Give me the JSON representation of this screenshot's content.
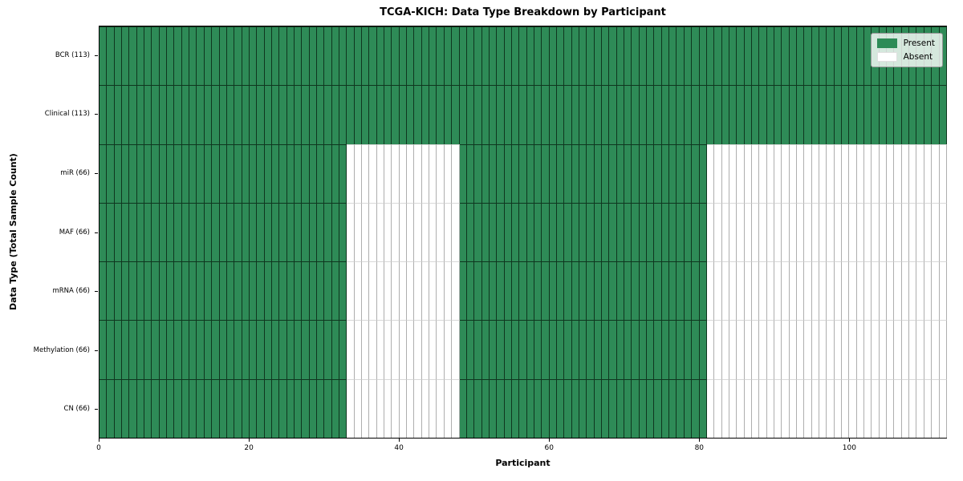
{
  "chart_data": {
    "type": "heatmap",
    "title": "TCGA-KICH: Data Type Breakdown by Participant",
    "xlabel": "Participant",
    "ylabel": "Data Type (Total Sample Count)",
    "x_ticks": [
      0,
      20,
      40,
      60,
      80,
      100
    ],
    "x_range": [
      0,
      113
    ],
    "n_participants": 113,
    "grid": false,
    "legend_position": "upper right",
    "colors": {
      "present": "#2e8b57",
      "absent": "#ffffff",
      "present_edge": "rgba(5,25,12,0.75)",
      "absent_edge": "#aeaeae"
    },
    "legend": [
      {
        "label": "Present",
        "key": "present"
      },
      {
        "label": "Absent",
        "key": "absent"
      }
    ],
    "rows": [
      {
        "label": "BCR (113)",
        "total_samples": 113,
        "present_ranges": [
          [
            0,
            113
          ]
        ]
      },
      {
        "label": "Clinical (113)",
        "total_samples": 113,
        "present_ranges": [
          [
            0,
            113
          ]
        ]
      },
      {
        "label": "miR (66)",
        "total_samples": 66,
        "present_ranges": [
          [
            0,
            33
          ],
          [
            48,
            81
          ]
        ]
      },
      {
        "label": "MAF (66)",
        "total_samples": 66,
        "present_ranges": [
          [
            0,
            33
          ],
          [
            48,
            81
          ]
        ]
      },
      {
        "label": "mRNA (66)",
        "total_samples": 66,
        "present_ranges": [
          [
            0,
            33
          ],
          [
            48,
            81
          ]
        ]
      },
      {
        "label": "Methylation (66)",
        "total_samples": 66,
        "present_ranges": [
          [
            0,
            33
          ],
          [
            48,
            81
          ]
        ]
      },
      {
        "label": "CN (66)",
        "total_samples": 66,
        "present_ranges": [
          [
            0,
            33
          ],
          [
            48,
            81
          ]
        ]
      }
    ]
  }
}
